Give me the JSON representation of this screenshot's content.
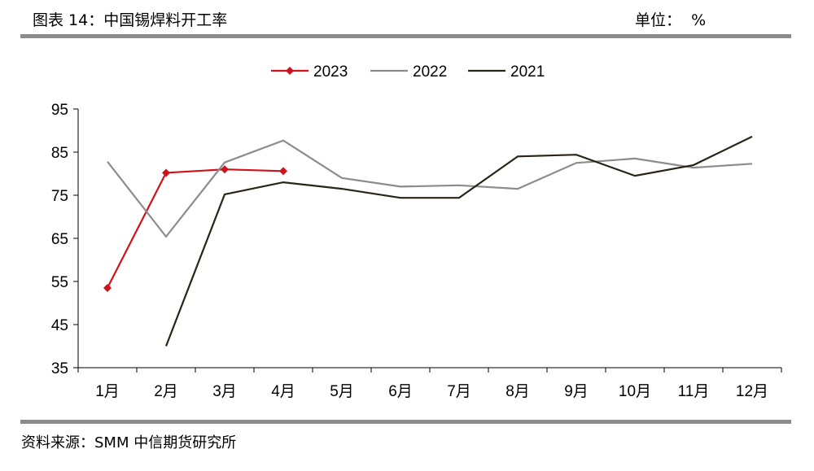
{
  "header": {
    "title": "图表 14：中国锡焊料开工率",
    "unit": "单位：  %"
  },
  "footer": {
    "source": "资料来源：SMM 中信期货研究所"
  },
  "chart_data": {
    "type": "line",
    "title": "中国锡焊料开工率",
    "xlabel": "",
    "ylabel": "%",
    "categories": [
      "1月",
      "2月",
      "3月",
      "4月",
      "5月",
      "6月",
      "7月",
      "8月",
      "9月",
      "10月",
      "11月",
      "12月"
    ],
    "ylim": [
      35,
      95
    ],
    "yticks": [
      35,
      45,
      55,
      65,
      75,
      85,
      95
    ],
    "legend_position": "top-center",
    "series": [
      {
        "name": "2023",
        "color": "#d0121b",
        "marker": "diamond",
        "values": [
          53.5,
          80.2,
          81.0,
          80.6,
          null,
          null,
          null,
          null,
          null,
          null,
          null,
          null
        ]
      },
      {
        "name": "2022",
        "color": "#8c8c8c",
        "marker": "none",
        "values": [
          82.8,
          65.4,
          82.6,
          87.7,
          79.0,
          77.0,
          77.3,
          76.5,
          82.5,
          83.5,
          81.4,
          82.3
        ]
      },
      {
        "name": "2021",
        "color": "#2a2416",
        "marker": "none",
        "values": [
          null,
          40.0,
          75.2,
          78.0,
          76.5,
          74.4,
          74.4,
          84.0,
          84.4,
          79.5,
          82.0,
          88.6
        ]
      }
    ]
  }
}
